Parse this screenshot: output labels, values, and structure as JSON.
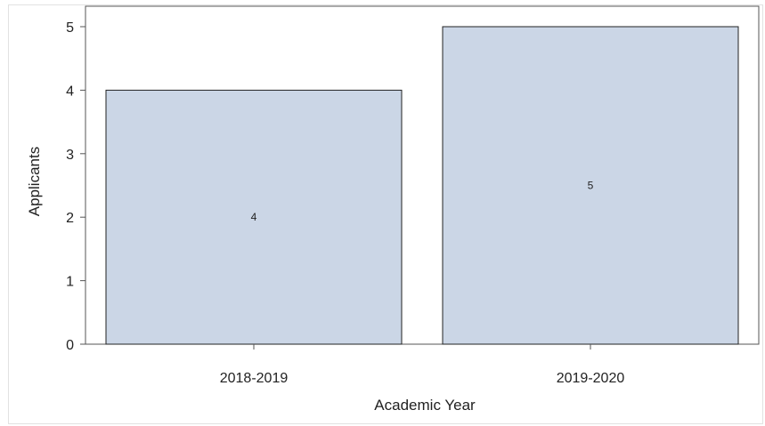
{
  "chart_data": {
    "type": "bar",
    "categories": [
      "2018-2019",
      "2019-2020"
    ],
    "values": [
      4,
      5
    ],
    "data_labels": [
      "4",
      "5"
    ],
    "xlabel": "Academic Year",
    "ylabel": "Applicants",
    "ylim": [
      0,
      5
    ],
    "yticks": [
      "0",
      "1",
      "2",
      "3",
      "4",
      "5"
    ],
    "grid": false,
    "colors": {
      "bar_fill": "#cbd6e6",
      "bar_stroke": "#222222",
      "axis": "#555555"
    }
  }
}
